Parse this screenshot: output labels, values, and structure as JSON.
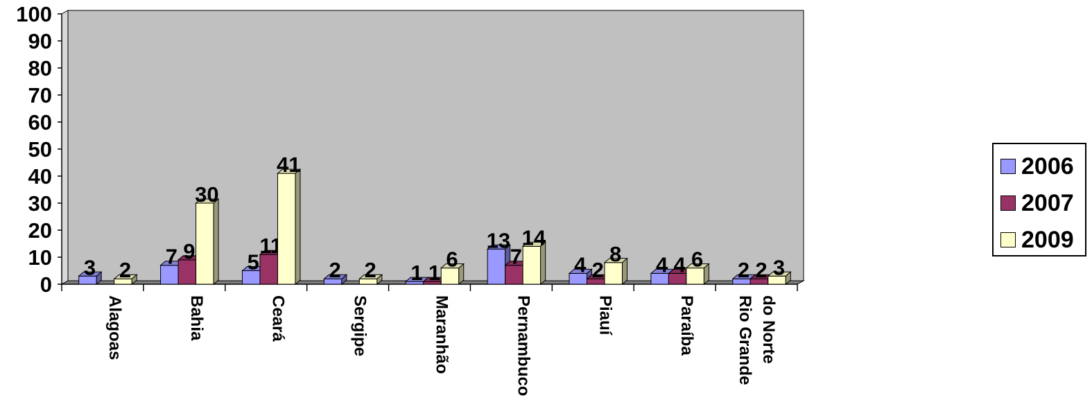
{
  "chart_data": {
    "type": "bar",
    "categories": [
      "Alagoas",
      "Bahia",
      "Ceará",
      "Sergipe",
      "Maranhão",
      "Pernambuco",
      "Piauí",
      "Paraíba",
      "Rio Grande do Norte"
    ],
    "category_lines": [
      [
        "Alagoas"
      ],
      [
        "Bahia"
      ],
      [
        "Ceará"
      ],
      [
        "Sergipe"
      ],
      [
        "Maranhão"
      ],
      [
        "Pernambuco"
      ],
      [
        "Piauí"
      ],
      [
        "Paraíba"
      ],
      [
        "Rio Grande",
        "do Norte"
      ]
    ],
    "series": [
      {
        "name": "2006",
        "color": "#9999FF",
        "values": [
          3,
          7,
          5,
          2,
          1,
          13,
          4,
          4,
          2
        ]
      },
      {
        "name": "2007",
        "color": "#993366",
        "values": [
          0,
          9,
          11,
          0,
          1,
          7,
          2,
          4,
          2
        ]
      },
      {
        "name": "2009",
        "color": "#FFFFCC",
        "values": [
          2,
          30,
          41,
          2,
          6,
          14,
          8,
          6,
          3
        ]
      }
    ],
    "value_labels": [
      [
        "3",
        "7",
        "5",
        "2",
        "1",
        "13",
        "4",
        "4",
        "2"
      ],
      [
        "",
        "9",
        "11",
        "",
        "1",
        "7",
        "2",
        "4",
        "2"
      ],
      [
        "2",
        "30",
        "41",
        "2",
        "6",
        "14",
        "8",
        "6",
        "3"
      ]
    ],
    "yticks": [
      "0",
      "10",
      "20",
      "30",
      "40",
      "50",
      "60",
      "70",
      "80",
      "90",
      "100"
    ],
    "ylim": [
      0,
      100
    ],
    "style": "3d-clustered-column",
    "wall_color": "#C0C0C0",
    "legend_position": "right",
    "grid": false
  }
}
